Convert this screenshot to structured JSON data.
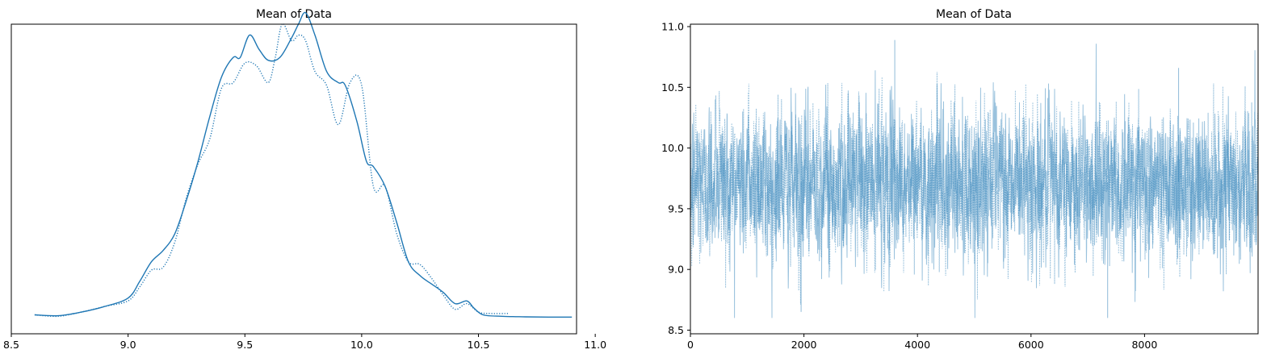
{
  "chart_data": [
    {
      "type": "line",
      "title": "Mean of Data",
      "xlabel": "",
      "ylabel": "",
      "xlim": [
        8.5,
        10.92
      ],
      "xticks": [
        "8.5",
        "9.0",
        "9.5",
        "10.0",
        "10.5",
        "11.0"
      ],
      "yticks": [],
      "grid": false,
      "legend": "none",
      "color": "#1f77b4",
      "series": [
        {
          "line_style": "solid",
          "x": [
            8.6,
            8.7,
            8.8,
            8.9,
            9.0,
            9.05,
            9.1,
            9.15,
            9.2,
            9.25,
            9.3,
            9.35,
            9.4,
            9.45,
            9.48,
            9.52,
            9.56,
            9.6,
            9.65,
            9.7,
            9.73,
            9.76,
            9.8,
            9.85,
            9.9,
            9.93,
            9.98,
            10.02,
            10.05,
            10.1,
            10.15,
            10.2,
            10.25,
            10.3,
            10.35,
            10.4,
            10.45,
            10.48,
            10.52,
            10.6,
            10.7,
            10.8,
            10.9
          ],
          "values": [
            0.01,
            0.007,
            0.02,
            0.04,
            0.07,
            0.13,
            0.2,
            0.24,
            0.3,
            0.42,
            0.56,
            0.72,
            0.86,
            0.93,
            0.93,
            1.01,
            0.96,
            0.92,
            0.93,
            1.0,
            1.05,
            1.09,
            1.01,
            0.88,
            0.84,
            0.83,
            0.7,
            0.56,
            0.54,
            0.47,
            0.34,
            0.2,
            0.15,
            0.12,
            0.09,
            0.05,
            0.06,
            0.035,
            0.01,
            0.005,
            0.003,
            0.002,
            0.002
          ]
        },
        {
          "line_style": "dotted",
          "x": [
            8.6,
            8.7,
            8.8,
            8.9,
            9.0,
            9.05,
            9.1,
            9.15,
            9.2,
            9.25,
            9.3,
            9.35,
            9.4,
            9.45,
            9.5,
            9.55,
            9.6,
            9.63,
            9.66,
            9.7,
            9.73,
            9.76,
            9.8,
            9.85,
            9.9,
            9.95,
            10.0,
            10.05,
            10.1,
            10.15,
            10.2,
            10.25,
            10.3,
            10.35,
            10.4,
            10.45,
            10.5,
            10.55,
            10.63
          ],
          "values": [
            0.01,
            0.005,
            0.02,
            0.04,
            0.06,
            0.11,
            0.17,
            0.18,
            0.27,
            0.43,
            0.55,
            0.64,
            0.82,
            0.84,
            0.91,
            0.9,
            0.84,
            0.93,
            1.05,
            0.99,
            1.01,
            0.99,
            0.88,
            0.83,
            0.69,
            0.84,
            0.83,
            0.47,
            0.47,
            0.3,
            0.2,
            0.19,
            0.14,
            0.08,
            0.03,
            0.05,
            0.02,
            0.015,
            0.015
          ]
        }
      ]
    },
    {
      "type": "line",
      "title": "Mean of Data",
      "xlabel": "",
      "ylabel": "",
      "xlim": [
        0,
        10000
      ],
      "ylim": [
        8.47,
        11.02
      ],
      "xticks": [
        "0",
        "2000",
        "4000",
        "6000",
        "8000"
      ],
      "yticks": [
        "8.5",
        "9.0",
        "9.5",
        "10.0",
        "10.5",
        "11.0"
      ],
      "grid": false,
      "legend": "none",
      "color": "#1f77b4",
      "series": [
        {
          "line_style": "solid",
          "mean": 9.72,
          "spread": 0.29,
          "max": 10.89,
          "min": 8.6,
          "draws": 10000
        },
        {
          "line_style": "dotted",
          "mean": 9.7,
          "spread": 0.28,
          "max": 10.65,
          "min": 8.65,
          "draws": 10000
        }
      ]
    }
  ]
}
